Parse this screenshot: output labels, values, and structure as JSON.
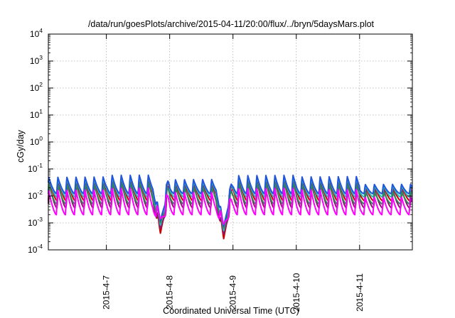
{
  "chart_data": {
    "type": "line",
    "title": "/data/run/goesPlots/archive/2015-04-11/20:00/flux/../bryn/5daysMars.plot",
    "xlabel": "Coordinated Universal Time (UTC)",
    "ylabel": "cGy/day",
    "yscale": "log",
    "ylim": [
      0.0001,
      10000
    ],
    "y_ticks": [
      {
        "base": "10",
        "exp": "4",
        "value": 10000
      },
      {
        "base": "10",
        "exp": "3",
        "value": 1000
      },
      {
        "base": "10",
        "exp": "2",
        "value": 100
      },
      {
        "base": "10",
        "exp": "1",
        "value": 10
      },
      {
        "base": "10",
        "exp": "0",
        "value": 1
      },
      {
        "base": "10",
        "exp": "-1",
        "value": 0.1
      },
      {
        "base": "10",
        "exp": "-2",
        "value": 0.01
      },
      {
        "base": "10",
        "exp": "-3",
        "value": 0.001
      },
      {
        "base": "10",
        "exp": "-4",
        "value": 0.0001
      }
    ],
    "xlim": [
      "2015-04-06 02:00",
      "2015-04-11 20:00"
    ],
    "x_ticks": [
      {
        "label": "2015-4-7",
        "value": "2015-04-07"
      },
      {
        "label": "2015-4-8",
        "value": "2015-04-08"
      },
      {
        "label": "2015-4-9",
        "value": "2015-04-09"
      },
      {
        "label": "2015-4-10",
        "value": "2015-04-10"
      },
      {
        "label": "2015-4-11",
        "value": "2015-04-11"
      }
    ],
    "grid": true,
    "legend": "none",
    "cycles_per_day": 7,
    "dips": [
      {
        "at": "2015-04-07 20:30",
        "min": 0.0004
      },
      {
        "at": "2015-04-08 20:30",
        "min": 0.00025
      }
    ],
    "series": [
      {
        "color": "#cc0000",
        "peak": 0.045,
        "trough": 0.0065
      },
      {
        "color": "#8b1a6b",
        "peak": 0.035,
        "trough": 0.0035
      },
      {
        "color": "#20c0c0",
        "peak": 0.05,
        "trough": 0.009
      },
      {
        "color": "#2e8b57",
        "peak": 0.03,
        "trough": 0.005
      },
      {
        "color": "#2255dd",
        "peak": 0.055,
        "trough": 0.012
      },
      {
        "color": "#ff00ff",
        "peak": 0.02,
        "trough": 0.002
      }
    ]
  }
}
